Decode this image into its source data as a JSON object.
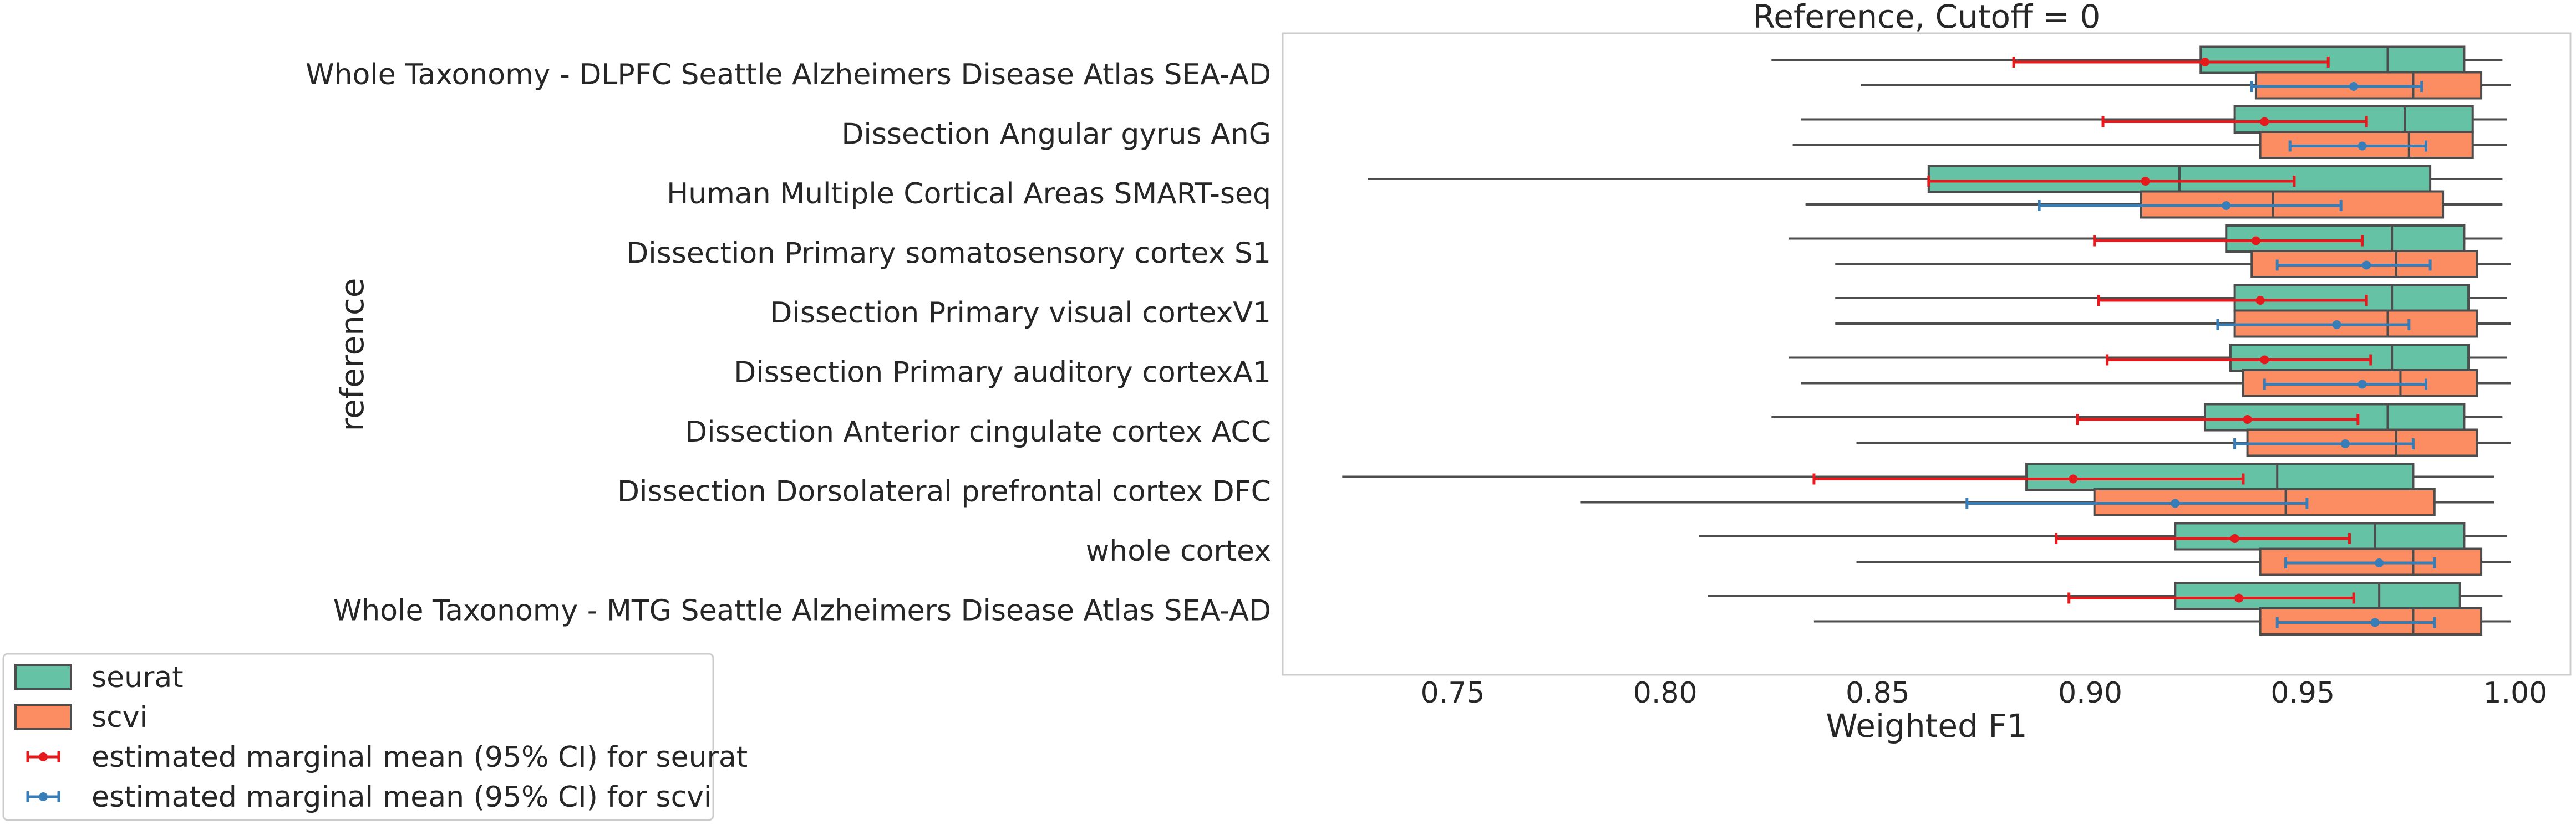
{
  "chart_data": {
    "type": "box",
    "title": "Reference, Cutoff = 0",
    "xlabel": "Weighted F1",
    "ylabel": "reference",
    "xlim": [
      0.71,
      1.013
    ],
    "xticks": [
      0.75,
      0.8,
      0.85,
      0.9,
      0.95,
      1.0
    ],
    "xtick_labels": [
      "0.75",
      "0.80",
      "0.85",
      "0.90",
      "0.95",
      "1.00"
    ],
    "grid": false,
    "legend_position": "lower-left, outside plot",
    "colors": {
      "seurat": "#66c2a5",
      "scvi": "#fc8d62",
      "seurat_ci": "#e41a1c",
      "scvi_ci": "#377eb8",
      "box_edge": "#4d4d4d"
    },
    "categories": [
      "Whole Taxonomy - DLPFC Seattle Alzheimers Disease Atlas SEA-AD",
      "Dissection Angular gyrus AnG",
      "Human Multiple Cortical Areas SMART-seq",
      "Dissection Primary somatosensory cortex S1",
      "Dissection Primary visual cortexV1",
      "Dissection Primary auditory cortexA1",
      "Dissection Anterior cingulate cortex ACC",
      "Dissection Dorsolateral prefrontal cortex DFC",
      "whole cortex",
      "Whole Taxonomy - MTG Seattle Alzheimers Disease Atlas SEA-AD"
    ],
    "series": [
      {
        "name": "seurat",
        "boxes": [
          {
            "whislo": 0.825,
            "q1": 0.926,
            "med": 0.97,
            "q3": 0.988,
            "whishi": 0.997
          },
          {
            "whislo": 0.832,
            "q1": 0.934,
            "med": 0.974,
            "q3": 0.99,
            "whishi": 0.998
          },
          {
            "whislo": 0.73,
            "q1": 0.862,
            "med": 0.921,
            "q3": 0.98,
            "whishi": 0.997
          },
          {
            "whislo": 0.829,
            "q1": 0.932,
            "med": 0.971,
            "q3": 0.988,
            "whishi": 0.997
          },
          {
            "whislo": 0.84,
            "q1": 0.934,
            "med": 0.971,
            "q3": 0.989,
            "whishi": 0.998
          },
          {
            "whislo": 0.829,
            "q1": 0.933,
            "med": 0.971,
            "q3": 0.989,
            "whishi": 0.998
          },
          {
            "whislo": 0.825,
            "q1": 0.927,
            "med": 0.97,
            "q3": 0.988,
            "whishi": 0.997
          },
          {
            "whislo": 0.724,
            "q1": 0.885,
            "med": 0.944,
            "q3": 0.976,
            "whishi": 0.995
          },
          {
            "whislo": 0.808,
            "q1": 0.92,
            "med": 0.967,
            "q3": 0.988,
            "whishi": 0.998
          },
          {
            "whislo": 0.81,
            "q1": 0.92,
            "med": 0.968,
            "q3": 0.987,
            "whishi": 0.997
          }
        ],
        "emm": [
          {
            "mean": 0.927,
            "lo": 0.882,
            "hi": 0.956
          },
          {
            "mean": 0.941,
            "lo": 0.903,
            "hi": 0.965
          },
          {
            "mean": 0.913,
            "lo": 0.862,
            "hi": 0.948
          },
          {
            "mean": 0.939,
            "lo": 0.901,
            "hi": 0.964
          },
          {
            "mean": 0.94,
            "lo": 0.902,
            "hi": 0.965
          },
          {
            "mean": 0.941,
            "lo": 0.904,
            "hi": 0.966
          },
          {
            "mean": 0.937,
            "lo": 0.897,
            "hi": 0.963
          },
          {
            "mean": 0.896,
            "lo": 0.835,
            "hi": 0.936
          },
          {
            "mean": 0.934,
            "lo": 0.892,
            "hi": 0.961
          },
          {
            "mean": 0.935,
            "lo": 0.895,
            "hi": 0.962
          }
        ]
      },
      {
        "name": "scvi",
        "boxes": [
          {
            "whislo": 0.846,
            "q1": 0.939,
            "med": 0.976,
            "q3": 0.992,
            "whishi": 0.999
          },
          {
            "whislo": 0.83,
            "q1": 0.94,
            "med": 0.975,
            "q3": 0.99,
            "whishi": 0.998
          },
          {
            "whislo": 0.833,
            "q1": 0.912,
            "med": 0.943,
            "q3": 0.983,
            "whishi": 0.997
          },
          {
            "whislo": 0.84,
            "q1": 0.938,
            "med": 0.972,
            "q3": 0.991,
            "whishi": 0.999
          },
          {
            "whislo": 0.84,
            "q1": 0.934,
            "med": 0.97,
            "q3": 0.991,
            "whishi": 0.999
          },
          {
            "whislo": 0.832,
            "q1": 0.936,
            "med": 0.973,
            "q3": 0.991,
            "whishi": 0.999
          },
          {
            "whislo": 0.845,
            "q1": 0.937,
            "med": 0.972,
            "q3": 0.991,
            "whishi": 0.999
          },
          {
            "whislo": 0.78,
            "q1": 0.901,
            "med": 0.946,
            "q3": 0.981,
            "whishi": 0.995
          },
          {
            "whislo": 0.845,
            "q1": 0.94,
            "med": 0.976,
            "q3": 0.992,
            "whishi": 0.999
          },
          {
            "whislo": 0.835,
            "q1": 0.94,
            "med": 0.976,
            "q3": 0.992,
            "whishi": 0.999
          }
        ],
        "emm": [
          {
            "mean": 0.962,
            "lo": 0.938,
            "hi": 0.978
          },
          {
            "mean": 0.964,
            "lo": 0.947,
            "hi": 0.979
          },
          {
            "mean": 0.932,
            "lo": 0.888,
            "hi": 0.959
          },
          {
            "mean": 0.965,
            "lo": 0.944,
            "hi": 0.98
          },
          {
            "mean": 0.958,
            "lo": 0.93,
            "hi": 0.975
          },
          {
            "mean": 0.964,
            "lo": 0.941,
            "hi": 0.979
          },
          {
            "mean": 0.96,
            "lo": 0.934,
            "hi": 0.976
          },
          {
            "mean": 0.92,
            "lo": 0.871,
            "hi": 0.951
          },
          {
            "mean": 0.968,
            "lo": 0.946,
            "hi": 0.981
          },
          {
            "mean": 0.967,
            "lo": 0.944,
            "hi": 0.981
          }
        ]
      }
    ],
    "legend": [
      {
        "label": "seurat",
        "kind": "patch",
        "color": "#66c2a5"
      },
      {
        "label": "scvi",
        "kind": "patch",
        "color": "#fc8d62"
      },
      {
        "label": "estimated marginal mean (95% CI) for seurat",
        "kind": "errorbar",
        "color": "#e41a1c"
      },
      {
        "label": "estimated marginal mean (95% CI) for scvi",
        "kind": "errorbar",
        "color": "#377eb8"
      }
    ]
  }
}
